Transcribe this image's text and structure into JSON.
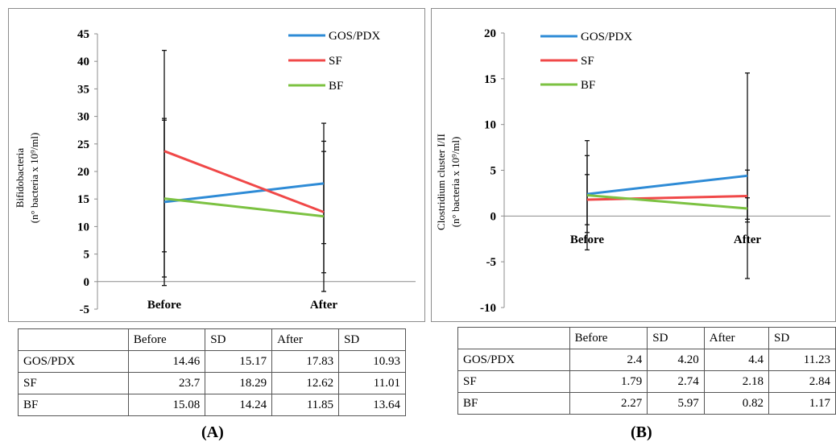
{
  "chart_data": [
    {
      "type": "line",
      "panel_label": "(A)",
      "ylabel": "Bifidobacteria\n(n° bacteria x 10⁹/ml)",
      "categories": [
        "Before",
        "After"
      ],
      "ylim": [
        -5,
        45
      ],
      "yticks": [
        -5,
        0,
        5,
        10,
        15,
        20,
        25,
        30,
        35,
        40,
        45
      ],
      "legend_position": "top-right",
      "series": [
        {
          "name": "GOS/PDX",
          "color": "#2e8bd6",
          "values": [
            14.46,
            17.83
          ],
          "sd": [
            15.17,
            10.93
          ]
        },
        {
          "name": "SF",
          "color": "#f04848",
          "values": [
            23.7,
            12.62
          ],
          "sd": [
            18.29,
            11.01
          ]
        },
        {
          "name": "BF",
          "color": "#7cc242",
          "values": [
            15.08,
            11.85
          ],
          "sd": [
            14.24,
            13.64
          ]
        }
      ],
      "table": {
        "headers": [
          "",
          "Before",
          "SD",
          "After",
          "SD"
        ],
        "rows": [
          [
            "GOS/PDX",
            "14.46",
            "15.17",
            "17.83",
            "10.93"
          ],
          [
            "SF",
            "23.7",
            "18.29",
            "12.62",
            "11.01"
          ],
          [
            "BF",
            "15.08",
            "14.24",
            "11.85",
            "13.64"
          ]
        ]
      }
    },
    {
      "type": "line",
      "panel_label": "(B)",
      "ylabel": "Clostridium cluster I/II\n(n° bacteria x 10⁹/ml)",
      "categories": [
        "Before",
        "After"
      ],
      "ylim": [
        -10,
        20
      ],
      "yticks": [
        -10,
        -5,
        0,
        5,
        10,
        15,
        20
      ],
      "legend_position": "top-left",
      "series": [
        {
          "name": "GOS/PDX",
          "color": "#2e8bd6",
          "values": [
            2.4,
            4.4
          ],
          "sd": [
            4.2,
            11.23
          ]
        },
        {
          "name": "SF",
          "color": "#f04848",
          "values": [
            1.79,
            2.18
          ],
          "sd": [
            2.74,
            2.84
          ]
        },
        {
          "name": "BF",
          "color": "#7cc242",
          "values": [
            2.27,
            0.82
          ],
          "sd": [
            5.97,
            1.17
          ]
        }
      ],
      "table": {
        "headers": [
          "",
          "Before",
          "SD",
          "After",
          "SD"
        ],
        "rows": [
          [
            "GOS/PDX",
            "2.4",
            "4.20",
            "4.4",
            "11.23"
          ],
          [
            "SF",
            "1.79",
            "2.74",
            "2.18",
            "2.84"
          ],
          [
            "BF",
            "2.27",
            "5.97",
            "0.82",
            "1.17"
          ]
        ]
      }
    }
  ]
}
